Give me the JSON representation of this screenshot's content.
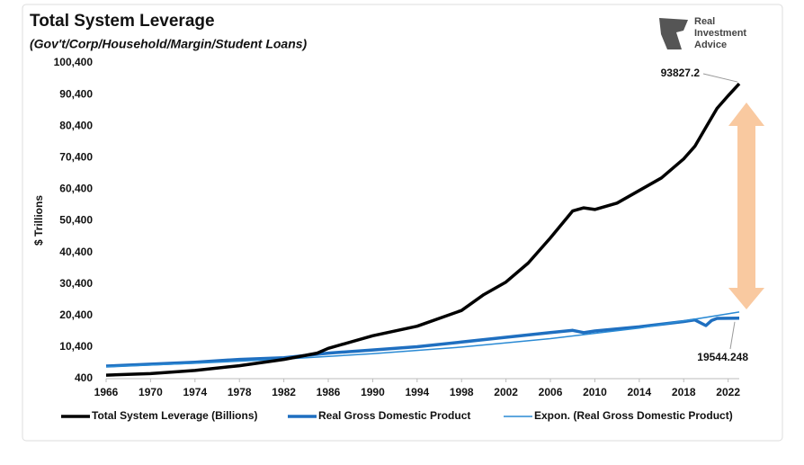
{
  "chart_data": {
    "type": "line",
    "title": "Total System Leverage",
    "subtitle": "(Gov't/Corp/Household/Margin/Student Loans)",
    "y_label": "$ Trillions",
    "logo": [
      "Real",
      "Investment",
      "Advice"
    ],
    "xlim": [
      1966,
      2023
    ],
    "xticks": [
      1966,
      1970,
      1974,
      1978,
      1982,
      1986,
      1990,
      1994,
      1998,
      2002,
      2006,
      2010,
      2014,
      2018,
      2022
    ],
    "ylim": [
      400,
      100400
    ],
    "yticks": [
      400,
      {
        "value": 10400,
        "label": "10,400"
      },
      {
        "value": 20400,
        "label": "20,400"
      },
      {
        "value": 30400,
        "label": "30,400"
      },
      {
        "value": 40400,
        "label": "40,400"
      },
      {
        "value": 50400,
        "label": "50,400"
      },
      {
        "value": 60400,
        "label": "60,400"
      },
      {
        "value": 70400,
        "label": "70,400"
      },
      {
        "value": 80400,
        "label": "80,400"
      },
      {
        "value": 90400,
        "label": "90,400"
      },
      {
        "value": 100400,
        "label": "100,400"
      }
    ],
    "grid": false,
    "legend": "bottom",
    "series": [
      {
        "name": "Total System Leverage (Billions)",
        "color": "#000000",
        "width": 3.5,
        "x": [
          1966,
          1970,
          1974,
          1978,
          1982,
          1985,
          1986,
          1990,
          1994,
          1998,
          2000,
          2002,
          2004,
          2006,
          2008,
          2009,
          2010,
          2012,
          2014,
          2016,
          2018,
          2019,
          2020,
          2021,
          2022,
          2023
        ],
        "values": [
          1500,
          2000,
          3000,
          4500,
          6500,
          8500,
          10000,
          14000,
          17000,
          22000,
          27000,
          31000,
          37000,
          45000,
          53500,
          54500,
          54000,
          56000,
          60000,
          64000,
          70000,
          74000,
          80000,
          86000,
          90000,
          93827.2
        ]
      },
      {
        "name": "Real Gross Domestic Product",
        "color": "#1f6fc0",
        "width": 3.5,
        "x": [
          1966,
          1970,
          1974,
          1978,
          1982,
          1986,
          1990,
          1994,
          1998,
          2002,
          2006,
          2008,
          2009,
          2010,
          2014,
          2018,
          2019,
          2020,
          2020.5,
          2021,
          2023
        ],
        "values": [
          4400,
          5000,
          5600,
          6500,
          7000,
          8500,
          9500,
          10500,
          12000,
          13500,
          15000,
          15700,
          15000,
          15500,
          16800,
          18500,
          19000,
          17200,
          18800,
          19500,
          19544.248
        ]
      },
      {
        "name": "Expon. (Real Gross Domestic Product)",
        "color": "#2a8ad4",
        "width": 1.5,
        "x": [
          1966,
          1974,
          1982,
          1990,
          1998,
          2006,
          2014,
          2023
        ],
        "values": [
          4200,
          5270,
          6610,
          8300,
          10410,
          13070,
          16400,
          21500
        ]
      }
    ]
  }
}
